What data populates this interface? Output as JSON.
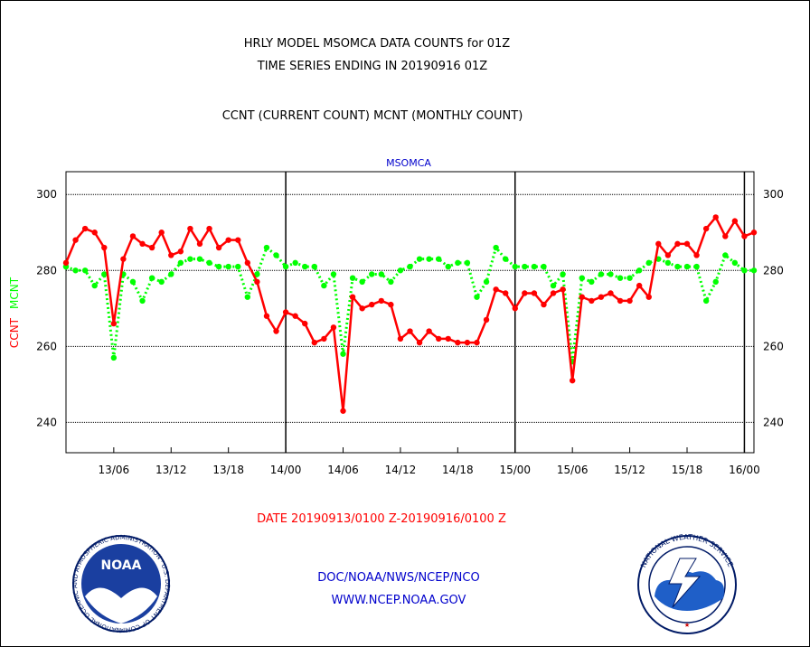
{
  "header": {
    "title1": "HRLY MODEL MSOMCA DATA COUNTS for 01Z",
    "title2": "TIME SERIES ENDING IN 20190916 01Z",
    "subtitle": "CCNT (CURRENT COUNT) MCNT (MONTHLY COUNT)",
    "station": "MSOMCA"
  },
  "footer": {
    "date_range": "DATE 20190913/0100 Z-20190916/0100 Z",
    "org": "DOC/NOAA/NWS/NCEP/NCO",
    "url": "WWW.NCEP.NOAA.GOV",
    "noaa_logo_text": "NOAA",
    "noaa_ring_text": "NATIONAL OCEANIC AND ATMOSPHERIC ADMINISTRATION · U.S. DEPARTMENT OF COMMERCE",
    "nws_ring_text": "NATIONAL WEATHER SERVICE"
  },
  "colors": {
    "ccnt": "#ff0000",
    "mcnt": "#00ff00",
    "title": "#000000",
    "station": "#0000cc",
    "footer_date": "#ff0000",
    "footer_links": "#0000cc"
  },
  "chart_data": {
    "type": "line",
    "ylabel_parts": [
      {
        "text": "CCNT",
        "color": "#ff0000"
      },
      {
        "text": "MCNT",
        "color": "#00ff00"
      }
    ],
    "xlim_hours": [
      0,
      72
    ],
    "ylim": [
      232,
      306
    ],
    "y_ticks": [
      240,
      260,
      280,
      300
    ],
    "x_ticks": [
      {
        "label": "13/06",
        "hour": 5
      },
      {
        "label": "13/12",
        "hour": 11
      },
      {
        "label": "13/18",
        "hour": 17
      },
      {
        "label": "14/00",
        "hour": 23
      },
      {
        "label": "14/06",
        "hour": 29
      },
      {
        "label": "14/12",
        "hour": 35
      },
      {
        "label": "14/18",
        "hour": 41
      },
      {
        "label": "15/00",
        "hour": 47
      },
      {
        "label": "15/06",
        "hour": 53
      },
      {
        "label": "15/12",
        "hour": 59
      },
      {
        "label": "15/18",
        "hour": 65
      },
      {
        "label": "16/00",
        "hour": 71
      }
    ],
    "day_boundaries_hours": [
      23,
      47,
      71
    ],
    "grid": true,
    "series": [
      {
        "name": "CCNT",
        "color": "#ff0000",
        "style": "solid",
        "values": [
          282,
          288,
          291,
          290,
          286,
          266,
          283,
          289,
          287,
          286,
          290,
          284,
          285,
          291,
          287,
          291,
          286,
          288,
          288,
          282,
          277,
          268,
          264,
          269,
          268,
          266,
          261,
          262,
          265,
          243,
          273,
          270,
          271,
          272,
          271,
          262,
          264,
          261,
          264,
          262,
          262,
          261,
          261,
          261,
          267,
          275,
          274,
          270,
          274,
          274,
          271,
          274,
          275,
          251,
          273,
          272,
          273,
          274,
          272,
          272,
          276,
          273,
          287,
          284,
          287,
          287,
          284,
          291,
          294,
          289,
          293,
          289,
          290
        ]
      },
      {
        "name": "MCNT",
        "color": "#00ff00",
        "style": "dotted",
        "values": [
          281,
          280,
          280,
          276,
          279,
          257,
          279,
          277,
          272,
          278,
          277,
          279,
          282,
          283,
          283,
          282,
          281,
          281,
          281,
          273,
          279,
          286,
          284,
          281,
          282,
          281,
          281,
          276,
          279,
          258,
          278,
          277,
          279,
          279,
          277,
          280,
          281,
          283,
          283,
          283,
          281,
          282,
          282,
          273,
          277,
          286,
          283,
          281,
          281,
          281,
          281,
          276,
          279,
          256,
          278,
          277,
          279,
          279,
          278,
          278,
          280,
          282,
          283,
          282,
          281,
          281,
          281,
          272,
          277,
          284,
          282,
          280,
          280
        ]
      }
    ]
  }
}
